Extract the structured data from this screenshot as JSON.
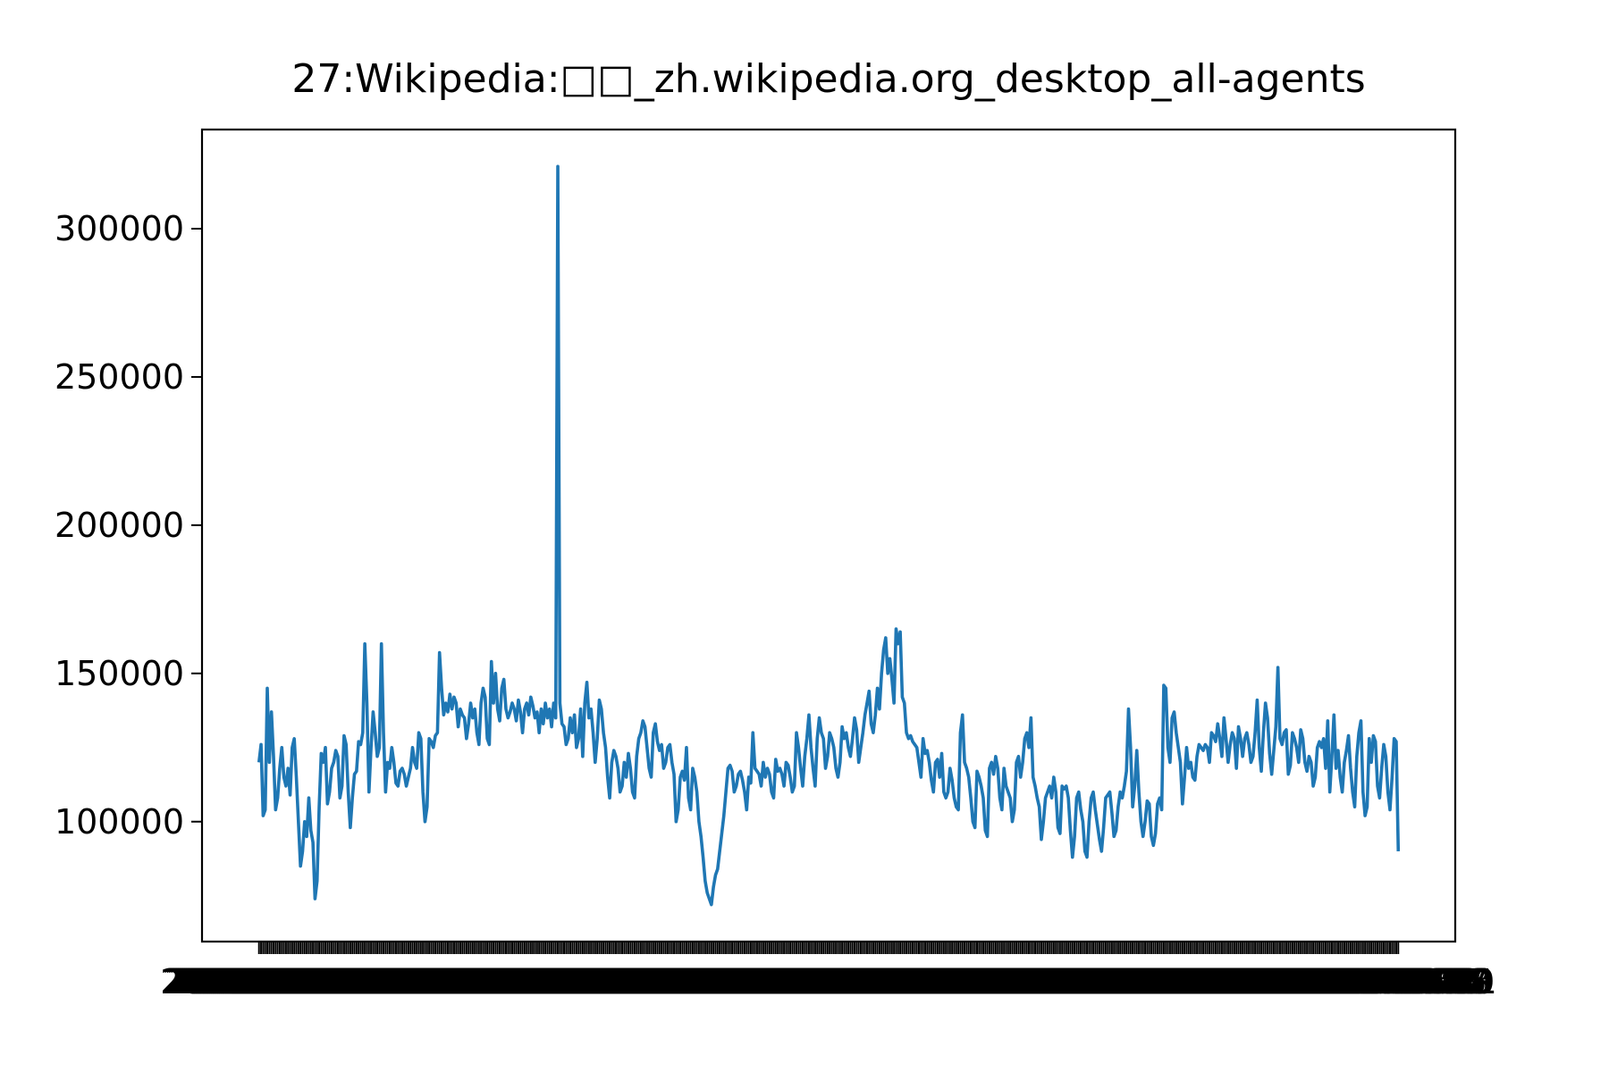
{
  "chart_data": {
    "type": "line",
    "title": "27:Wikipedia:□□_zh.wikipedia.org_desktop_all-agents",
    "color": "#1f77b4",
    "ylim": [
      59550,
      333450
    ],
    "yticks": [
      100000,
      150000,
      200000,
      250000,
      300000
    ],
    "categories": [
      "2015-07-01",
      "2015-07-02",
      "2015-07-03",
      "2015-07-04",
      "2015-07-05",
      "2015-07-06",
      "2015-07-07",
      "2015-07-08",
      "2015-07-09",
      "2015-07-10",
      "2015-07-11",
      "2015-07-12",
      "2015-07-13",
      "2015-07-14",
      "2015-07-15",
      "2015-07-16",
      "2015-07-17",
      "2015-07-18",
      "2015-07-19",
      "2015-07-20",
      "2015-07-21",
      "2015-07-22",
      "2015-07-23",
      "2015-07-24",
      "2015-07-25",
      "2015-07-26",
      "2015-07-27",
      "2015-07-28",
      "2015-07-29",
      "2015-07-30",
      "2015-07-31",
      "2015-08-01",
      "2015-08-02",
      "2015-08-03",
      "2015-08-04",
      "2015-08-05",
      "2015-08-06",
      "2015-08-07",
      "2015-08-08",
      "2015-08-09",
      "2015-08-10",
      "2015-08-11",
      "2015-08-12",
      "2015-08-13",
      "2015-08-14",
      "2015-08-15",
      "2015-08-16",
      "2015-08-17",
      "2015-08-18",
      "2015-08-19",
      "2015-08-20",
      "2015-08-21",
      "2015-08-22",
      "2015-08-23",
      "2015-08-24",
      "2015-08-25",
      "2015-08-26",
      "2015-08-27",
      "2015-08-28",
      "2015-08-29",
      "2015-08-30",
      "2015-08-31",
      "2015-09-01",
      "2015-09-02",
      "2015-09-03",
      "2015-09-04",
      "2015-09-05",
      "2015-09-06",
      "2015-09-07",
      "2015-09-08",
      "2015-09-09",
      "2015-09-10",
      "2015-09-11",
      "2015-09-12",
      "2015-09-13",
      "2015-09-14",
      "2015-09-15",
      "2015-09-16",
      "2015-09-17",
      "2015-09-18",
      "2015-09-19",
      "2015-09-20",
      "2015-09-21",
      "2015-09-22",
      "2015-09-23",
      "2015-09-24",
      "2015-09-25",
      "2015-09-26",
      "2015-09-27",
      "2015-09-28",
      "2015-09-29",
      "2015-09-30",
      "2015-10-01",
      "2015-10-02",
      "2015-10-03",
      "2015-10-04",
      "2015-10-05",
      "2015-10-06",
      "2015-10-07",
      "2015-10-08",
      "2015-10-09",
      "2015-10-10",
      "2015-10-11",
      "2015-10-12",
      "2015-10-13",
      "2015-10-14",
      "2015-10-15",
      "2015-10-16",
      "2015-10-17",
      "2015-10-18",
      "2015-10-19",
      "2015-10-20",
      "2015-10-21",
      "2015-10-22",
      "2015-10-23",
      "2015-10-24",
      "2015-10-25",
      "2015-10-26",
      "2015-10-27",
      "2015-10-28",
      "2015-10-29",
      "2015-10-30",
      "2015-10-31",
      "2015-11-01",
      "2015-11-02",
      "2015-11-03",
      "2015-11-04",
      "2015-11-05",
      "2015-11-06",
      "2015-11-07",
      "2015-11-08",
      "2015-11-09",
      "2015-11-10",
      "2015-11-11",
      "2015-11-12",
      "2015-11-13",
      "2015-11-14",
      "2015-11-15",
      "2015-11-16",
      "2015-11-17",
      "2015-11-18",
      "2015-11-19",
      "2015-11-20",
      "2015-11-21",
      "2015-11-22",
      "2015-11-23",
      "2015-11-24",
      "2015-11-25",
      "2015-11-26",
      "2015-11-27",
      "2015-11-28",
      "2015-11-29",
      "2015-11-30",
      "2015-12-01",
      "2015-12-02",
      "2015-12-03",
      "2015-12-04",
      "2015-12-05",
      "2015-12-06",
      "2015-12-07",
      "2015-12-08",
      "2015-12-09",
      "2015-12-10",
      "2015-12-11",
      "2015-12-12",
      "2015-12-13",
      "2015-12-14",
      "2015-12-15",
      "2015-12-16",
      "2015-12-17",
      "2015-12-18",
      "2015-12-19",
      "2015-12-20",
      "2015-12-21",
      "2015-12-22",
      "2015-12-23",
      "2015-12-24",
      "2015-12-25",
      "2015-12-26",
      "2015-12-27",
      "2015-12-28",
      "2015-12-29",
      "2015-12-30",
      "2015-12-31",
      "2016-01-01",
      "2016-01-02",
      "2016-01-03",
      "2016-01-04",
      "2016-01-05",
      "2016-01-06",
      "2016-01-07",
      "2016-01-08",
      "2016-01-09",
      "2016-01-10",
      "2016-01-11",
      "2016-01-12",
      "2016-01-13",
      "2016-01-14",
      "2016-01-15",
      "2016-01-16",
      "2016-01-17",
      "2016-01-18",
      "2016-01-19",
      "2016-01-20",
      "2016-01-21",
      "2016-01-22",
      "2016-01-23",
      "2016-01-24",
      "2016-01-25",
      "2016-01-26",
      "2016-01-27",
      "2016-01-28",
      "2016-01-29",
      "2016-01-30",
      "2016-01-31",
      "2016-02-01",
      "2016-02-02",
      "2016-02-03",
      "2016-02-04",
      "2016-02-05",
      "2016-02-06",
      "2016-02-07",
      "2016-02-08",
      "2016-02-09",
      "2016-02-10",
      "2016-02-11",
      "2016-02-12",
      "2016-02-13",
      "2016-02-14",
      "2016-02-15",
      "2016-02-16",
      "2016-02-17",
      "2016-02-18",
      "2016-02-19",
      "2016-02-20",
      "2016-02-21",
      "2016-02-22",
      "2016-02-23",
      "2016-02-24",
      "2016-02-25",
      "2016-02-26",
      "2016-02-27",
      "2016-02-28",
      "2016-02-29",
      "2016-03-01",
      "2016-03-02",
      "2016-03-03",
      "2016-03-04",
      "2016-03-05",
      "2016-03-06",
      "2016-03-07",
      "2016-03-08",
      "2016-03-09",
      "2016-03-10",
      "2016-03-11",
      "2016-03-12",
      "2016-03-13",
      "2016-03-14",
      "2016-03-15",
      "2016-03-16",
      "2016-03-17",
      "2016-03-18",
      "2016-03-19",
      "2016-03-20",
      "2016-03-21",
      "2016-03-22",
      "2016-03-23",
      "2016-03-24",
      "2016-03-25",
      "2016-03-26",
      "2016-03-27",
      "2016-03-28",
      "2016-03-29",
      "2016-03-30",
      "2016-03-31",
      "2016-04-01",
      "2016-04-02",
      "2016-04-03",
      "2016-04-04",
      "2016-04-05",
      "2016-04-06",
      "2016-04-07",
      "2016-04-08",
      "2016-04-09",
      "2016-04-10",
      "2016-04-11",
      "2016-04-12",
      "2016-04-13",
      "2016-04-14",
      "2016-04-15",
      "2016-04-16",
      "2016-04-17",
      "2016-04-18",
      "2016-04-19",
      "2016-04-20",
      "2016-04-21",
      "2016-04-22",
      "2016-04-23",
      "2016-04-24",
      "2016-04-25",
      "2016-04-26",
      "2016-04-27",
      "2016-04-28",
      "2016-04-29",
      "2016-04-30",
      "2016-05-01",
      "2016-05-02",
      "2016-05-03",
      "2016-05-04",
      "2016-05-05",
      "2016-05-06",
      "2016-05-07",
      "2016-05-08",
      "2016-05-09",
      "2016-05-10",
      "2016-05-11",
      "2016-05-12",
      "2016-05-13",
      "2016-05-14",
      "2016-05-15",
      "2016-05-16",
      "2016-05-17",
      "2016-05-18",
      "2016-05-19",
      "2016-05-20",
      "2016-05-21",
      "2016-05-22",
      "2016-05-23",
      "2016-05-24",
      "2016-05-25",
      "2016-05-26",
      "2016-05-27",
      "2016-05-28",
      "2016-05-29",
      "2016-05-30",
      "2016-05-31",
      "2016-06-01",
      "2016-06-02",
      "2016-06-03",
      "2016-06-04",
      "2016-06-05",
      "2016-06-06",
      "2016-06-07",
      "2016-06-08",
      "2016-06-09",
      "2016-06-10",
      "2016-06-11",
      "2016-06-12",
      "2016-06-13",
      "2016-06-14",
      "2016-06-15",
      "2016-06-16",
      "2016-06-17",
      "2016-06-18",
      "2016-06-19",
      "2016-06-20",
      "2016-06-21",
      "2016-06-22",
      "2016-06-23",
      "2016-06-24",
      "2016-06-25",
      "2016-06-26",
      "2016-06-27",
      "2016-06-28",
      "2016-06-29",
      "2016-06-30",
      "2016-07-01",
      "2016-07-02",
      "2016-07-03",
      "2016-07-04",
      "2016-07-05",
      "2016-07-06",
      "2016-07-07",
      "2016-07-08",
      "2016-07-09",
      "2016-07-10",
      "2016-07-11",
      "2016-07-12",
      "2016-07-13",
      "2016-07-14",
      "2016-07-15",
      "2016-07-16",
      "2016-07-17",
      "2016-07-18",
      "2016-07-19",
      "2016-07-20",
      "2016-07-21",
      "2016-07-22",
      "2016-07-23",
      "2016-07-24",
      "2016-07-25",
      "2016-07-26",
      "2016-07-27",
      "2016-07-28",
      "2016-07-29",
      "2016-07-30",
      "2016-07-31",
      "2016-08-01",
      "2016-08-02",
      "2016-08-03",
      "2016-08-04",
      "2016-08-05",
      "2016-08-06",
      "2016-08-07",
      "2016-08-08",
      "2016-08-09",
      "2016-08-10",
      "2016-08-11",
      "2016-08-12",
      "2016-08-13",
      "2016-08-14",
      "2016-08-15",
      "2016-08-16",
      "2016-08-17",
      "2016-08-18",
      "2016-08-19",
      "2016-08-20",
      "2016-08-21",
      "2016-08-22",
      "2016-08-23",
      "2016-08-24",
      "2016-08-25",
      "2016-08-26",
      "2016-08-27",
      "2016-08-28",
      "2016-08-29",
      "2016-08-30",
      "2016-08-31",
      "2016-09-01",
      "2016-09-02",
      "2016-09-03",
      "2016-09-04",
      "2016-09-05",
      "2016-09-06",
      "2016-09-07",
      "2016-09-08",
      "2016-09-09",
      "2016-09-10",
      "2016-09-11",
      "2016-09-12",
      "2016-09-13",
      "2016-09-14",
      "2016-09-15",
      "2016-09-16",
      "2016-09-17",
      "2016-09-18",
      "2016-09-19",
      "2016-09-20",
      "2016-09-21",
      "2016-09-22",
      "2016-09-23",
      "2016-09-24",
      "2016-09-25",
      "2016-09-26",
      "2016-09-27",
      "2016-09-28",
      "2016-09-29",
      "2016-09-30",
      "2016-10-01",
      "2016-10-02",
      "2016-10-03",
      "2016-10-04",
      "2016-10-05",
      "2016-10-06",
      "2016-10-07",
      "2016-10-08",
      "2016-10-09",
      "2016-10-10",
      "2016-10-11",
      "2016-10-12",
      "2016-10-13",
      "2016-10-14",
      "2016-10-15",
      "2016-10-16",
      "2016-10-17",
      "2016-10-18",
      "2016-10-19",
      "2016-10-20",
      "2016-10-21",
      "2016-10-22",
      "2016-10-23",
      "2016-10-24",
      "2016-10-25",
      "2016-10-26",
      "2016-10-27",
      "2016-10-28",
      "2016-10-29",
      "2016-10-30",
      "2016-10-31",
      "2016-11-01",
      "2016-11-02",
      "2016-11-03",
      "2016-11-04",
      "2016-11-05",
      "2016-11-06",
      "2016-11-07",
      "2016-11-08",
      "2016-11-09",
      "2016-11-10",
      "2016-11-11",
      "2016-11-12",
      "2016-11-13",
      "2016-11-14",
      "2016-11-15",
      "2016-11-16",
      "2016-11-17",
      "2016-11-18",
      "2016-11-19",
      "2016-11-20",
      "2016-11-21",
      "2016-11-22",
      "2016-11-23",
      "2016-11-24",
      "2016-11-25",
      "2016-11-26",
      "2016-11-27",
      "2016-11-28",
      "2016-11-29",
      "2016-11-30",
      "2016-12-01",
      "2016-12-02",
      "2016-12-03",
      "2016-12-04",
      "2016-12-05",
      "2016-12-06",
      "2016-12-07",
      "2016-12-08",
      "2016-12-09",
      "2016-12-10",
      "2016-12-11",
      "2016-12-12",
      "2016-12-13",
      "2016-12-14",
      "2016-12-15",
      "2016-12-16",
      "2016-12-17",
      "2016-12-18",
      "2016-12-19",
      "2016-12-20",
      "2016-12-21",
      "2016-12-22",
      "2016-12-23",
      "2016-12-24",
      "2016-12-25",
      "2016-12-26",
      "2016-12-27",
      "2016-12-28",
      "2016-12-29",
      "2016-12-30",
      "2016-12-31"
    ],
    "values": [
      120000,
      126000,
      102000,
      104000,
      145000,
      120000,
      137000,
      122000,
      104000,
      108000,
      118000,
      125000,
      115000,
      112000,
      118000,
      109000,
      125000,
      128000,
      115000,
      100000,
      85000,
      90000,
      100000,
      95000,
      108000,
      97000,
      93000,
      74000,
      80000,
      105000,
      123000,
      120000,
      125000,
      106000,
      110000,
      118000,
      120000,
      124000,
      122000,
      108000,
      112000,
      129000,
      126000,
      110000,
      98000,
      108000,
      116000,
      117000,
      127000,
      126000,
      130000,
      160000,
      140000,
      110000,
      125000,
      137000,
      130000,
      122000,
      125000,
      160000,
      130000,
      110000,
      120000,
      118000,
      125000,
      120000,
      113000,
      112000,
      117000,
      118000,
      116000,
      112000,
      115000,
      118000,
      125000,
      120000,
      118000,
      130000,
      128000,
      110000,
      100000,
      105000,
      128000,
      127000,
      125000,
      129000,
      130000,
      157000,
      145000,
      136000,
      140000,
      137000,
      143000,
      138000,
      142000,
      140000,
      132000,
      138000,
      136000,
      135000,
      128000,
      133000,
      140000,
      135000,
      138000,
      130000,
      126000,
      140000,
      145000,
      142000,
      128000,
      126000,
      154000,
      140000,
      150000,
      138000,
      134000,
      145000,
      148000,
      138000,
      135000,
      137000,
      140000,
      138000,
      134000,
      141000,
      137000,
      130000,
      138000,
      140000,
      136000,
      142000,
      139000,
      135000,
      137000,
      130000,
      138000,
      133000,
      140000,
      135000,
      138000,
      132000,
      140000,
      135000,
      321000,
      140000,
      133000,
      132000,
      126000,
      128000,
      135000,
      130000,
      136000,
      125000,
      128000,
      138000,
      122000,
      140000,
      147000,
      135000,
      138000,
      130000,
      120000,
      128000,
      141000,
      138000,
      130000,
      125000,
      115000,
      108000,
      120000,
      124000,
      122000,
      118000,
      110000,
      112000,
      120000,
      115000,
      123000,
      118000,
      110000,
      108000,
      122000,
      128000,
      130000,
      134000,
      132000,
      125000,
      118000,
      115000,
      130000,
      133000,
      127000,
      124000,
      126000,
      118000,
      120000,
      125000,
      126000,
      120000,
      116000,
      100000,
      104000,
      115000,
      117000,
      114000,
      125000,
      108000,
      104000,
      118000,
      115000,
      110000,
      100000,
      95000,
      88000,
      80000,
      76000,
      74000,
      72000,
      78000,
      82000,
      84000,
      90000,
      96000,
      102000,
      110000,
      118000,
      119000,
      117000,
      110000,
      112000,
      116000,
      117000,
      114000,
      110000,
      104000,
      115000,
      113000,
      130000,
      118000,
      117000,
      116000,
      112000,
      120000,
      115000,
      118000,
      116000,
      110000,
      108000,
      121000,
      117000,
      118000,
      116000,
      112000,
      120000,
      119000,
      115000,
      110000,
      112000,
      130000,
      125000,
      118000,
      112000,
      122000,
      128000,
      136000,
      125000,
      118000,
      112000,
      128000,
      135000,
      130000,
      128000,
      118000,
      122000,
      130000,
      128000,
      125000,
      118000,
      115000,
      120000,
      132000,
      128000,
      130000,
      125000,
      122000,
      128000,
      135000,
      131000,
      120000,
      125000,
      130000,
      136000,
      140000,
      144000,
      133000,
      130000,
      136000,
      145000,
      138000,
      150000,
      158000,
      162000,
      150000,
      155000,
      148000,
      140000,
      165000,
      160000,
      164000,
      142000,
      140000,
      130000,
      128000,
      129000,
      127000,
      126000,
      125000,
      120000,
      115000,
      128000,
      123000,
      124000,
      120000,
      114000,
      110000,
      120000,
      121000,
      115000,
      123000,
      110000,
      108000,
      110000,
      118000,
      114000,
      108000,
      105000,
      104000,
      130000,
      136000,
      120000,
      118000,
      115000,
      108000,
      100000,
      98000,
      117000,
      115000,
      112000,
      108000,
      97000,
      95000,
      118000,
      120000,
      116000,
      122000,
      118000,
      108000,
      104000,
      118000,
      112000,
      110000,
      108000,
      100000,
      104000,
      120000,
      122000,
      115000,
      120000,
      128000,
      130000,
      125000,
      135000,
      115000,
      112000,
      108000,
      105000,
      94000,
      100000,
      108000,
      110000,
      112000,
      108000,
      115000,
      110000,
      98000,
      96000,
      112000,
      111000,
      112000,
      108000,
      97000,
      88000,
      95000,
      108000,
      110000,
      104000,
      100000,
      90000,
      88000,
      100000,
      108000,
      110000,
      104000,
      99000,
      94000,
      90000,
      98000,
      108000,
      109000,
      110000,
      103000,
      95000,
      97000,
      105000,
      110000,
      108000,
      112000,
      117000,
      138000,
      125000,
      105000,
      112000,
      124000,
      110000,
      100000,
      95000,
      100000,
      107000,
      106000,
      95000,
      92000,
      96000,
      106000,
      108000,
      104000,
      146000,
      145000,
      125000,
      120000,
      135000,
      137000,
      130000,
      125000,
      120000,
      106000,
      115000,
      125000,
      118000,
      120000,
      115000,
      114000,
      122000,
      126000,
      125000,
      124000,
      126000,
      125000,
      120000,
      130000,
      129000,
      127000,
      133000,
      128000,
      122000,
      135000,
      128000,
      120000,
      126000,
      130000,
      128000,
      118000,
      132000,
      128000,
      122000,
      128000,
      130000,
      126000,
      120000,
      122000,
      130000,
      141000,
      125000,
      117000,
      130000,
      140000,
      135000,
      123000,
      116000,
      124000,
      132000,
      152000,
      128000,
      126000,
      130000,
      131000,
      116000,
      119000,
      130000,
      128000,
      125000,
      120000,
      131000,
      128000,
      120000,
      117000,
      122000,
      120000,
      112000,
      115000,
      125000,
      127000,
      125000,
      128000,
      118000,
      134000,
      110000,
      122000,
      136000,
      118000,
      124000,
      115000,
      110000,
      120000,
      124000,
      129000,
      118000,
      110000,
      105000,
      122000,
      130000,
      134000,
      110000,
      102000,
      105000,
      128000,
      120000,
      129000,
      127000,
      112000,
      108000,
      118000,
      126000,
      122000,
      110000,
      104000,
      115000,
      128000,
      127000,
      90000
    ]
  }
}
